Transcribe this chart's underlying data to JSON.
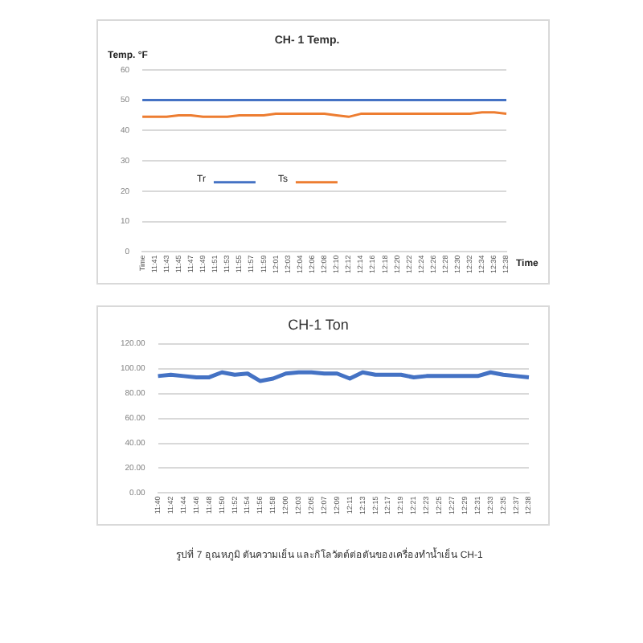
{
  "chart_data": [
    {
      "type": "line",
      "title": "CH- 1 Temp.",
      "ylabel": "Temp. °F",
      "xlabel": "Time",
      "categories": [
        "Time",
        "11:41",
        "11:43",
        "11:45",
        "11:47",
        "11:49",
        "11:51",
        "11:53",
        "11:55",
        "11:57",
        "11:59",
        "12:01",
        "12:03",
        "12:04",
        "12:06",
        "12:08",
        "12:10",
        "12:12",
        "12:14",
        "12:16",
        "12:18",
        "12:20",
        "12:22",
        "12:24",
        "12:26",
        "12:28",
        "12:30",
        "12:32",
        "12:34",
        "12:36",
        "12:38"
      ],
      "series": [
        {
          "name": "Tr",
          "color": "#4472c4",
          "values": [
            50,
            50,
            50,
            50,
            50,
            50,
            50,
            50,
            50,
            50,
            50,
            50,
            50,
            50,
            50,
            50,
            50,
            50,
            50,
            50,
            50,
            50,
            50,
            50,
            50,
            50,
            50,
            50,
            50,
            50,
            50
          ]
        },
        {
          "name": "Ts",
          "color": "#ed7d31",
          "values": [
            44.5,
            44.5,
            44.5,
            45,
            45,
            44.5,
            44.5,
            44.5,
            45,
            45,
            45,
            45.5,
            45.5,
            45.5,
            45.5,
            45.5,
            45,
            44.5,
            45.5,
            45.5,
            45.5,
            45.5,
            45.5,
            45.5,
            45.5,
            45.5,
            45.5,
            45.5,
            46,
            46,
            45.5
          ]
        }
      ],
      "ylim": [
        0,
        60
      ],
      "yticks": [
        0,
        10,
        20,
        30,
        40,
        50,
        60
      ],
      "grid": "y",
      "legend": "center left",
      "marker": "none",
      "line_style": "solid"
    },
    {
      "type": "line",
      "title": "CH-1 Ton",
      "categories": [
        "11:40",
        "11:42",
        "11:44",
        "11:46",
        "11:48",
        "11:50",
        "11:52",
        "11:54",
        "11:56",
        "11:58",
        "12:00",
        "12:03",
        "12:05",
        "12:07",
        "12:09",
        "12:11",
        "12:13",
        "12:15",
        "12:17",
        "12:19",
        "12:21",
        "12:23",
        "12:25",
        "12:27",
        "12:29",
        "12:31",
        "12:33",
        "12:35",
        "12:37",
        "12:38"
      ],
      "series": [
        {
          "color": "#4472c4",
          "values": [
            94,
            95,
            94,
            93,
            93,
            97,
            95,
            96,
            90,
            92,
            96,
            97,
            97,
            96,
            96,
            92,
            97,
            95,
            95,
            95,
            93,
            94,
            94,
            94,
            94,
            94,
            97,
            95,
            94,
            93
          ]
        }
      ],
      "ylim": [
        0,
        120
      ],
      "yticks": [
        {
          "value": 0,
          "label": "0.00"
        },
        {
          "value": 20,
          "label": "20.00"
        },
        {
          "value": 40,
          "label": "40.00"
        },
        {
          "value": 60,
          "label": "60.00"
        },
        {
          "value": 80,
          "label": "80.00"
        },
        {
          "value": 100,
          "label": "100.00"
        },
        {
          "value": 120,
          "label": "120.00"
        }
      ],
      "grid": "y",
      "marker": "none",
      "line_style": "solid",
      "annotations": [
        "รูปที่ 7 อุณหภูมิ ตันความเย็น และกิโลวัตต์ต่อตันของเครื่องทำน้ำเย็น CH-1"
      ]
    }
  ]
}
